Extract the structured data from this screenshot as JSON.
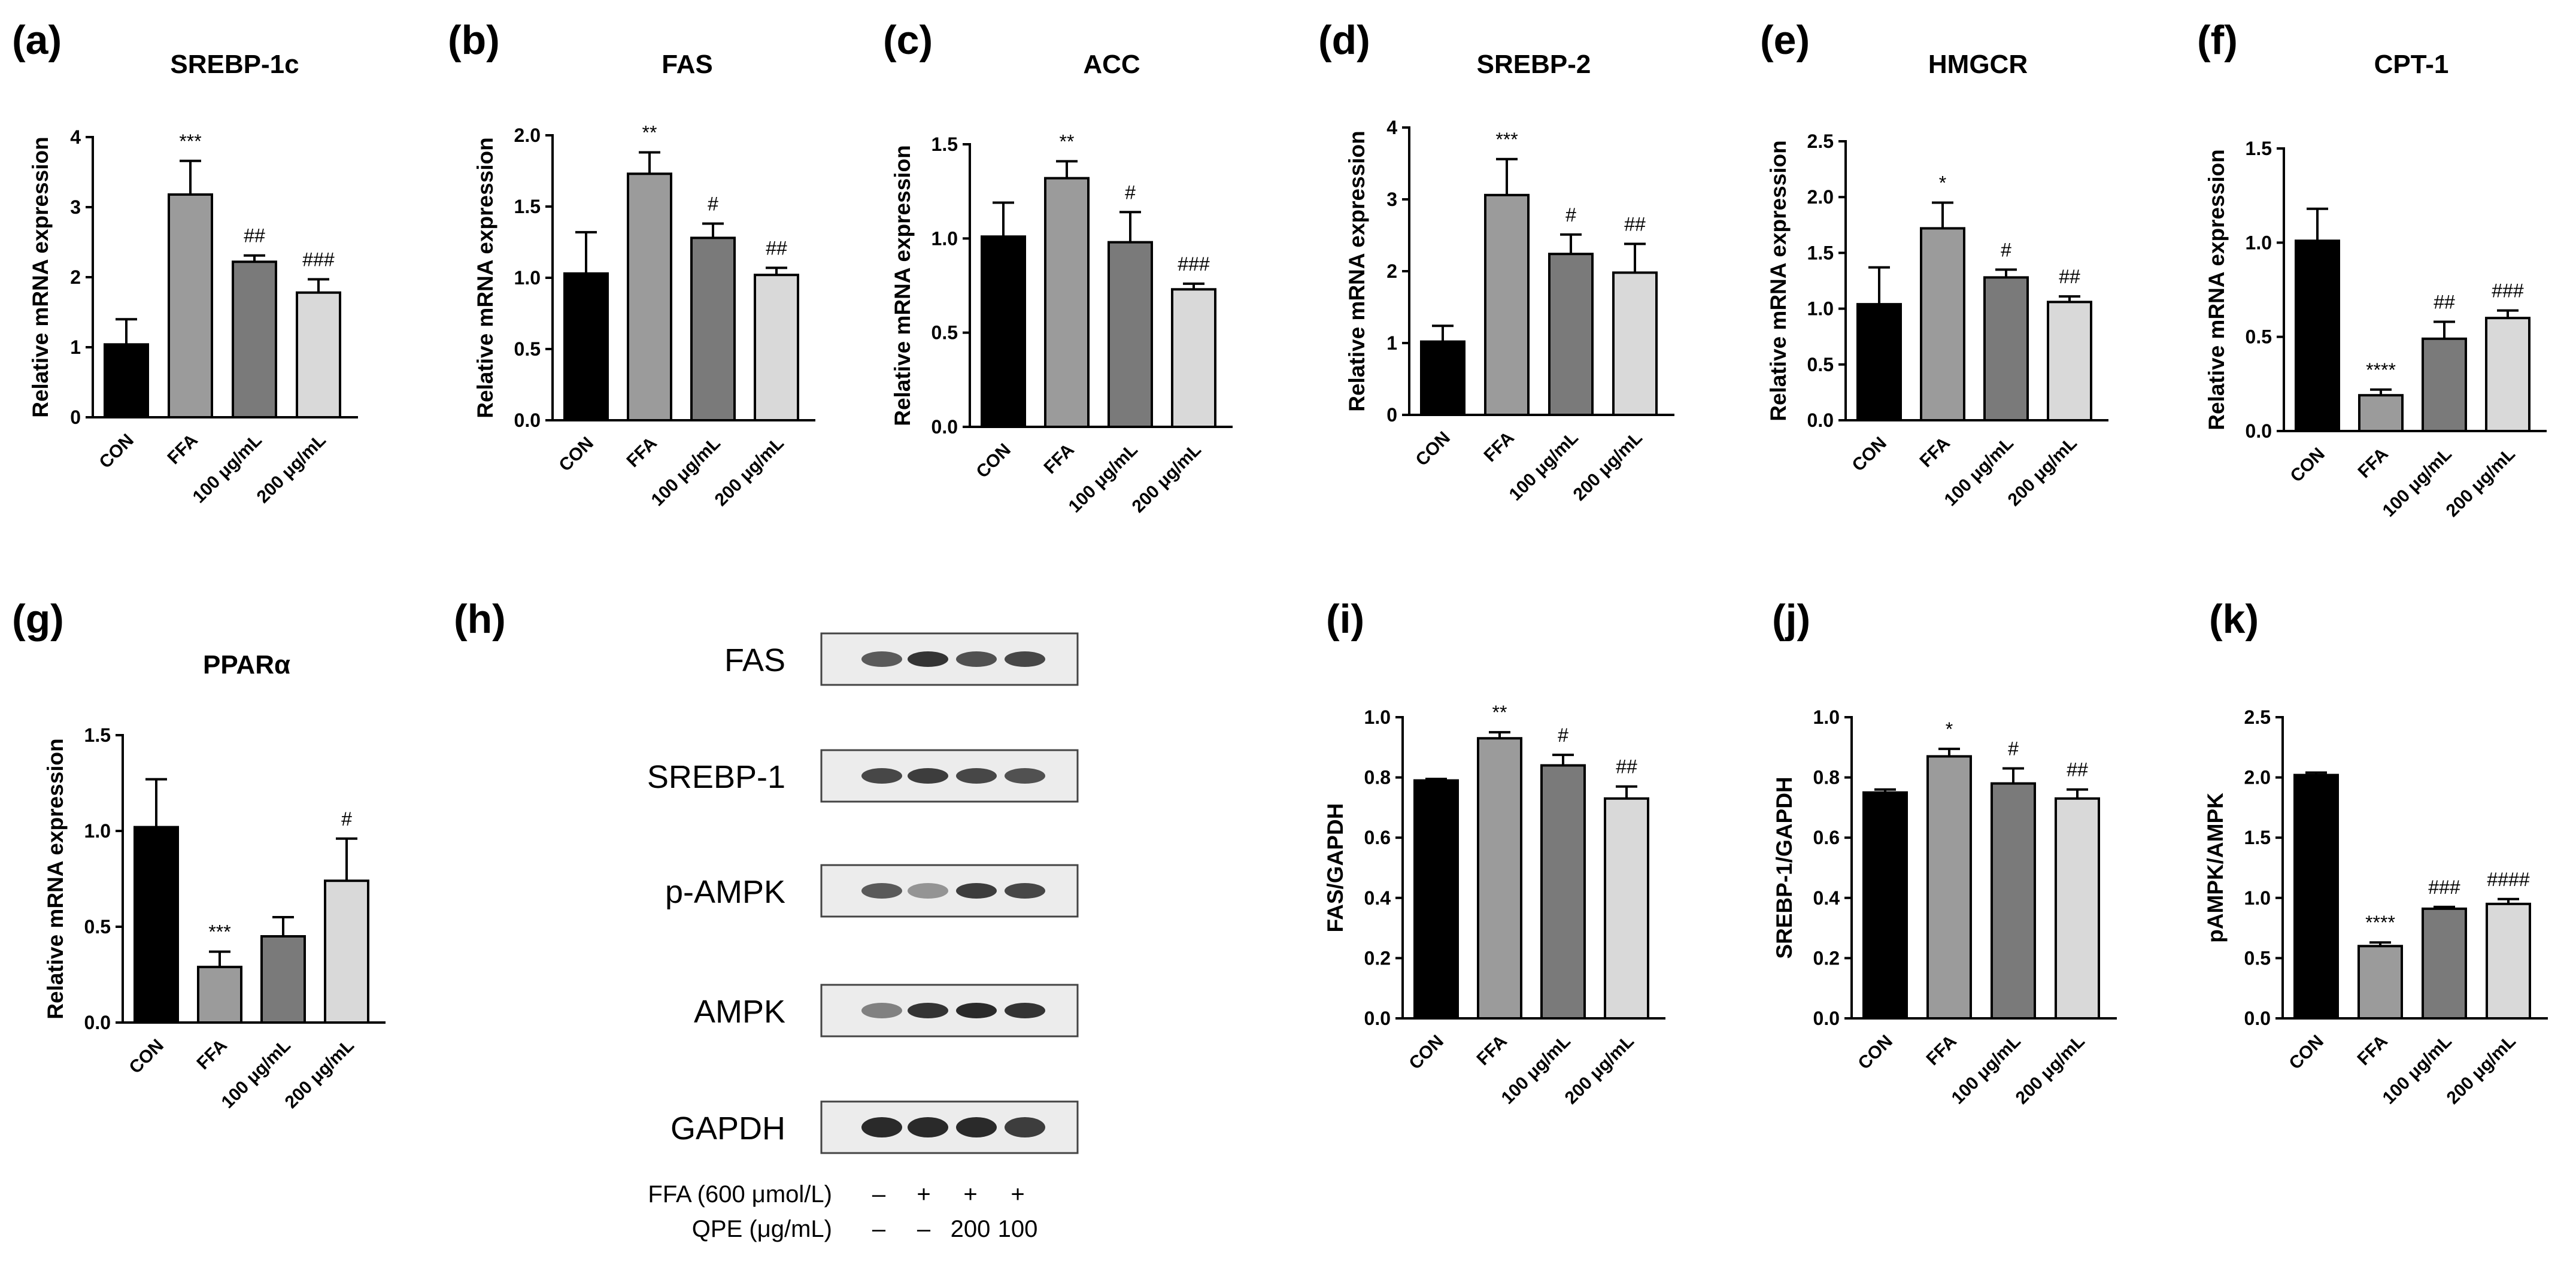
{
  "colors": {
    "CON": "#000000",
    "FFA": "#9b9b9b",
    "100": "#7a7a7a",
    "200": "#d9d9d9",
    "blot_bg": "#ececec",
    "band": "#2a2a2a"
  },
  "chart_data": [
    {
      "panel": "(a)",
      "type": "bar",
      "title": "SREBP-1c",
      "ylabel": "Relative mRNA expression",
      "categories": [
        "CON",
        "FFA",
        "100 μg/mL",
        "200 μg/mL"
      ],
      "values": [
        1.04,
        3.18,
        2.22,
        1.78
      ],
      "errors": [
        0.36,
        0.48,
        0.09,
        0.19
      ],
      "significance": [
        "",
        "***",
        "##",
        "###"
      ],
      "ylim": [
        0,
        4
      ],
      "yticks": [
        "0",
        "1",
        "2",
        "3",
        "4"
      ],
      "ytick_values": [
        0,
        1,
        2,
        3,
        4
      ]
    },
    {
      "panel": "(b)",
      "type": "bar",
      "title": "FAS",
      "ylabel": "Relative mRNA expression",
      "categories": [
        "CON",
        "FFA",
        "100 μg/mL",
        "200 μg/mL"
      ],
      "values": [
        1.03,
        1.73,
        1.28,
        1.02
      ],
      "errors": [
        0.29,
        0.15,
        0.1,
        0.05
      ],
      "significance": [
        "",
        "**",
        "#",
        "##"
      ],
      "ylim": [
        0,
        2
      ],
      "yticks": [
        "0.0",
        "0.5",
        "1.0",
        "1.5",
        "2.0"
      ],
      "ytick_values": [
        0,
        0.5,
        1,
        1.5,
        2
      ]
    },
    {
      "panel": "(c)",
      "type": "bar",
      "title": "ACC",
      "ylabel": "Relative mRNA expression",
      "categories": [
        "CON",
        "FFA",
        "100 μg/mL",
        "200 μg/mL"
      ],
      "values": [
        1.01,
        1.32,
        0.98,
        0.73
      ],
      "errors": [
        0.18,
        0.09,
        0.16,
        0.03
      ],
      "significance": [
        "",
        "**",
        "#",
        "###"
      ],
      "ylim": [
        0,
        1.5
      ],
      "yticks": [
        "0.0",
        "0.5",
        "1.0",
        "1.5"
      ],
      "ytick_values": [
        0,
        0.5,
        1,
        1.5
      ]
    },
    {
      "panel": "(d)",
      "type": "bar",
      "title": "SREBP-2",
      "ylabel": "Relative mRNA expression",
      "categories": [
        "CON",
        "FFA",
        "100 μg/mL",
        "200 μg/mL"
      ],
      "values": [
        1.02,
        3.06,
        2.24,
        1.98
      ],
      "errors": [
        0.22,
        0.5,
        0.27,
        0.4
      ],
      "significance": [
        "",
        "***",
        "#",
        "##"
      ],
      "ylim": [
        0,
        4
      ],
      "yticks": [
        "0",
        "1",
        "2",
        "3",
        "4"
      ],
      "ytick_values": [
        0,
        1,
        2,
        3,
        4
      ]
    },
    {
      "panel": "(e)",
      "type": "bar",
      "title": "HMGCR",
      "ylabel": "Relative mRNA expression",
      "categories": [
        "CON",
        "FFA",
        "100 μg/mL",
        "200 μg/mL"
      ],
      "values": [
        1.04,
        1.72,
        1.28,
        1.06
      ],
      "errors": [
        0.33,
        0.23,
        0.07,
        0.05
      ],
      "significance": [
        "",
        "*",
        "#",
        "##"
      ],
      "ylim": [
        0,
        2.5
      ],
      "yticks": [
        "0.0",
        "0.5",
        "1.0",
        "1.5",
        "2.0",
        "2.5"
      ],
      "ytick_values": [
        0,
        0.5,
        1,
        1.5,
        2,
        2.5
      ]
    },
    {
      "panel": "(f)",
      "type": "bar",
      "title": "CPT-1",
      "ylabel": "Relative mRNA expression",
      "categories": [
        "CON",
        "FFA",
        "100 μg/mL",
        "200 μg/mL"
      ],
      "values": [
        1.01,
        0.19,
        0.49,
        0.6
      ],
      "errors": [
        0.17,
        0.03,
        0.09,
        0.04
      ],
      "significance": [
        "",
        "****",
        "##",
        "###"
      ],
      "ylim": [
        0,
        1.5
      ],
      "yticks": [
        "0.0",
        "0.5",
        "1.0",
        "1.5"
      ],
      "ytick_values": [
        0,
        0.5,
        1,
        1.5
      ]
    },
    {
      "panel": "(g)",
      "type": "bar",
      "title": "PPARα",
      "ylabel": "Relative mRNA expression",
      "categories": [
        "CON",
        "FFA",
        "100 μg/mL",
        "200 μg/mL"
      ],
      "values": [
        1.02,
        0.29,
        0.45,
        0.74
      ],
      "errors": [
        0.25,
        0.08,
        0.1,
        0.22
      ],
      "significance": [
        "",
        "***",
        "",
        "#"
      ],
      "ylim": [
        0,
        1.5
      ],
      "yticks": [
        "0.0",
        "0.5",
        "1.0",
        "1.5"
      ],
      "ytick_values": [
        0,
        0.5,
        1,
        1.5
      ]
    },
    {
      "panel": "(i)",
      "type": "bar",
      "title": "",
      "ylabel": "FAS/GAPDH",
      "categories": [
        "CON",
        "FFA",
        "100 μg/mL",
        "200 μg/mL"
      ],
      "values": [
        0.79,
        0.93,
        0.84,
        0.73
      ],
      "errors": [
        0.005,
        0.02,
        0.035,
        0.04
      ],
      "significance": [
        "",
        "**",
        "#",
        "##"
      ],
      "ylim": [
        0,
        1.0
      ],
      "yticks": [
        "0.0",
        "0.2",
        "0.4",
        "0.6",
        "0.8",
        "1.0"
      ],
      "ytick_values": [
        0,
        0.2,
        0.4,
        0.6,
        0.8,
        1.0
      ]
    },
    {
      "panel": "(j)",
      "type": "bar",
      "title": "",
      "ylabel": "SREBP-1/GAPDH",
      "categories": [
        "CON",
        "FFA",
        "100 μg/mL",
        "200 μg/mL"
      ],
      "values": [
        0.75,
        0.87,
        0.78,
        0.73
      ],
      "errors": [
        0.01,
        0.025,
        0.05,
        0.03
      ],
      "significance": [
        "",
        "*",
        "#",
        "##"
      ],
      "ylim": [
        0,
        1.0
      ],
      "yticks": [
        "0.0",
        "0.2",
        "0.4",
        "0.6",
        "0.8",
        "1.0"
      ],
      "ytick_values": [
        0,
        0.2,
        0.4,
        0.6,
        0.8,
        1.0
      ]
    },
    {
      "panel": "(k)",
      "type": "bar",
      "title": "",
      "ylabel": "pAMPK/AMPK",
      "categories": [
        "CON",
        "FFA",
        "100 μg/mL",
        "200 μg/mL"
      ],
      "values": [
        2.02,
        0.6,
        0.91,
        0.95
      ],
      "errors": [
        0.02,
        0.03,
        0.015,
        0.04
      ],
      "significance": [
        "",
        "****",
        "###",
        "####"
      ],
      "ylim": [
        0,
        2.5
      ],
      "yticks": [
        "0.0",
        "0.5",
        "1.0",
        "1.5",
        "2.0",
        "2.5"
      ],
      "ytick_values": [
        0,
        0.5,
        1,
        1.5,
        2,
        2.5
      ]
    }
  ],
  "western_blot": {
    "panel": "(h)",
    "bands": [
      "FAS",
      "SREBP-1",
      "p-AMPK",
      "AMPK",
      "GAPDH"
    ],
    "band_intensity": [
      [
        0.75,
        0.95,
        0.8,
        0.85
      ],
      [
        0.85,
        0.9,
        0.85,
        0.8
      ],
      [
        0.75,
        0.45,
        0.9,
        0.85
      ],
      [
        0.55,
        0.95,
        1.0,
        0.95
      ],
      [
        1.0,
        1.0,
        1.0,
        0.9
      ]
    ],
    "treatments": [
      {
        "label": "FFA (600 μmol/L)",
        "values": [
          "–",
          "+",
          "+",
          "+"
        ]
      },
      {
        "label": "QPE (μg/mL)",
        "values": [
          "–",
          "–",
          "200",
          "100"
        ]
      }
    ]
  }
}
